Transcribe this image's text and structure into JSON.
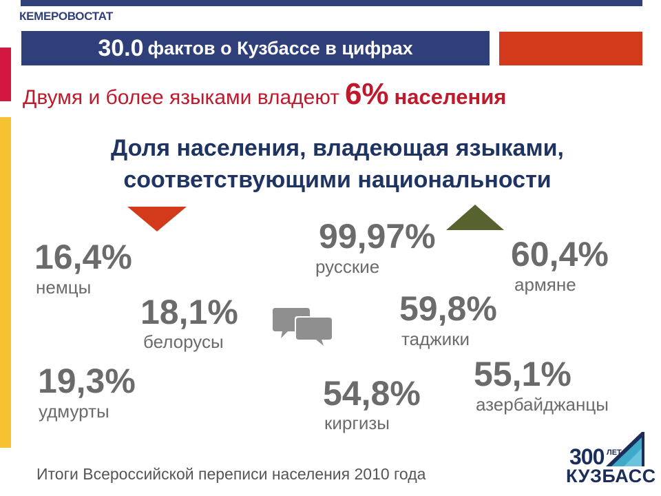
{
  "header": {
    "agency": "КЕМЕРОВОСТАТ",
    "title_number": "30.0",
    "title_text": "фактов о Кузбассе в цифрах"
  },
  "headline": {
    "text": "Двумя и более языками владеют",
    "percent": "6%",
    "rest": "населения"
  },
  "subtitle": {
    "line1": "Доля населения, владеющая языками,",
    "line2": "соответствующими национальности"
  },
  "items": [
    {
      "percent": "16,4%",
      "label": "немцы"
    },
    {
      "percent": "18,1%",
      "label": "белорусы"
    },
    {
      "percent": "19,3%",
      "label": "удмурты"
    },
    {
      "percent": "99,97%",
      "label": "русские"
    },
    {
      "percent": "54,8%",
      "label": "киргизы"
    },
    {
      "percent": "60,4%",
      "label": "армяне"
    },
    {
      "percent": "59,8%",
      "label": "таджики"
    },
    {
      "percent": "55,1%",
      "label": "азербайджанцы"
    }
  ],
  "footer": {
    "source": "Итоги Всероссийской переписи населения 2010 года"
  },
  "logo": {
    "number": "300",
    "years": "ЛЕТ",
    "name": "КУЗБАСС"
  },
  "icons": {
    "down": "triangle-down-icon",
    "up": "triangle-up-icon",
    "chat": "speech-bubbles-icon"
  },
  "colors": {
    "navy": "#2f3f7a",
    "red": "#d33a1b",
    "headline_red": "#c0192c",
    "crimson": "#d4173f",
    "yellow": "#f7c232",
    "olive": "#56632f",
    "gray": "#6b6b6b"
  }
}
